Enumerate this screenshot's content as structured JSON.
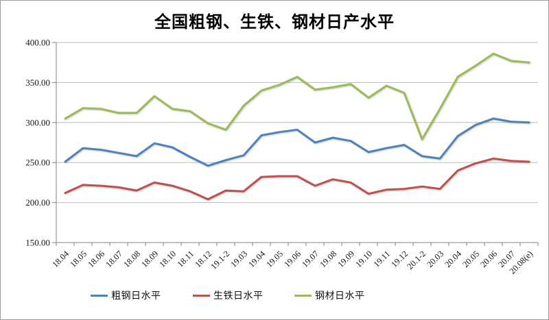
{
  "title": "全国粗钢、生铁、钢材日产水平",
  "chart_data": {
    "type": "line",
    "title": "全国粗钢、生铁、钢材日产水平",
    "xlabel": "",
    "ylabel": "",
    "ylim": [
      150,
      400
    ],
    "y_ticks": [
      "150.00",
      "200.00",
      "250.00",
      "300.00",
      "350.00",
      "400.00"
    ],
    "grid": true,
    "legend_position": "bottom",
    "categories": [
      "18.04",
      "18.05",
      "18.06",
      "18.07",
      "18.08",
      "18.09",
      "18.10",
      "18.11",
      "18.12",
      "19.1-2",
      "19.03",
      "19.04",
      "19.05",
      "19.06",
      "19.07",
      "19.08",
      "19.09",
      "19.10",
      "19.11",
      "19.12",
      "20.1-2",
      "20.03",
      "20.04",
      "20.05",
      "20.06",
      "20.07",
      "20.08(e)"
    ],
    "series": [
      {
        "name": "粗钢日水平",
        "color": "#4F81BD",
        "values": [
          251,
          268,
          266,
          262,
          258,
          274,
          269,
          257,
          246,
          253,
          259,
          284,
          288,
          291,
          275,
          281,
          277,
          263,
          268,
          272,
          258,
          255,
          283,
          297,
          305,
          301,
          300
        ]
      },
      {
        "name": "生铁日水平",
        "color": "#C0504D",
        "values": [
          212,
          222,
          221,
          219,
          215,
          225,
          221,
          214,
          204,
          215,
          214,
          232,
          233,
          233,
          221,
          229,
          225,
          211,
          216,
          217,
          220,
          217,
          240,
          249,
          255,
          252,
          251
        ]
      },
      {
        "name": "钢材日水平",
        "color": "#9BBB59",
        "values": [
          305,
          318,
          317,
          312,
          312,
          333,
          317,
          314,
          299,
          291,
          321,
          340,
          347,
          357,
          341,
          344,
          348,
          331,
          346,
          337,
          279,
          317,
          357,
          371,
          386,
          377,
          375
        ]
      }
    ]
  }
}
